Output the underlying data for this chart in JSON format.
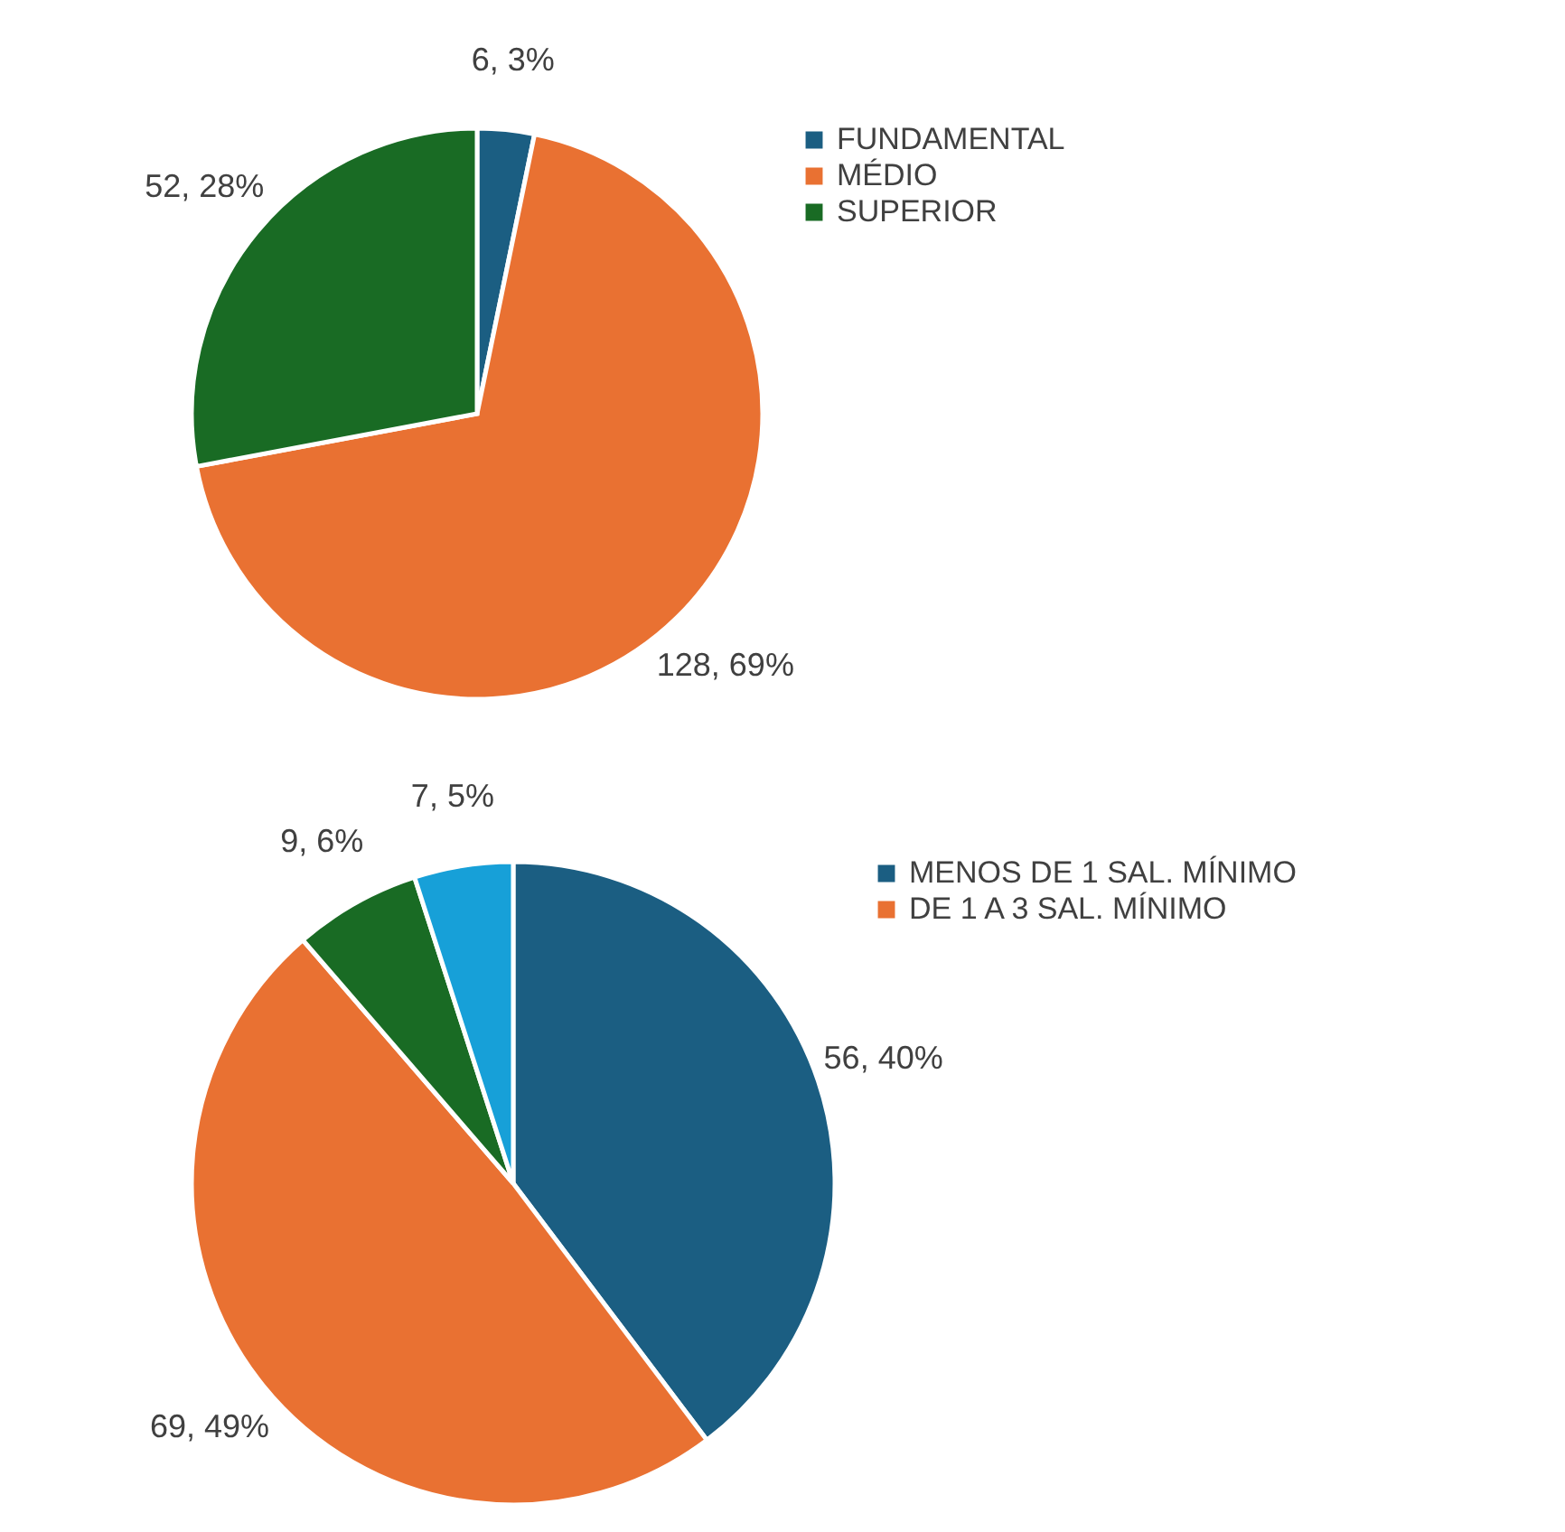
{
  "chart_data": [
    {
      "type": "pie",
      "categories": [
        "FUNDAMENTAL",
        "MÉDIO",
        "SUPERIOR"
      ],
      "values": [
        6,
        128,
        52
      ],
      "colors": [
        "#1b5e82",
        "#e97132",
        "#196b24"
      ],
      "value_labels": [
        "6, 3%",
        "128, 69%",
        "52, 28%"
      ],
      "legend": "right"
    },
    {
      "type": "pie",
      "categories": [
        "MENOS DE 1 SAL. MÍNIMO",
        "DE 1 A 3 SAL. MÍNIMO",
        null,
        null
      ],
      "values": [
        56,
        69,
        9,
        7
      ],
      "colors": [
        "#1b5e82",
        "#e97132",
        "#196b24",
        "#17a0d8"
      ],
      "value_labels": [
        "56, 40%",
        "69, 49%",
        "9, 6%",
        "7, 5%"
      ],
      "legend": "right"
    }
  ]
}
